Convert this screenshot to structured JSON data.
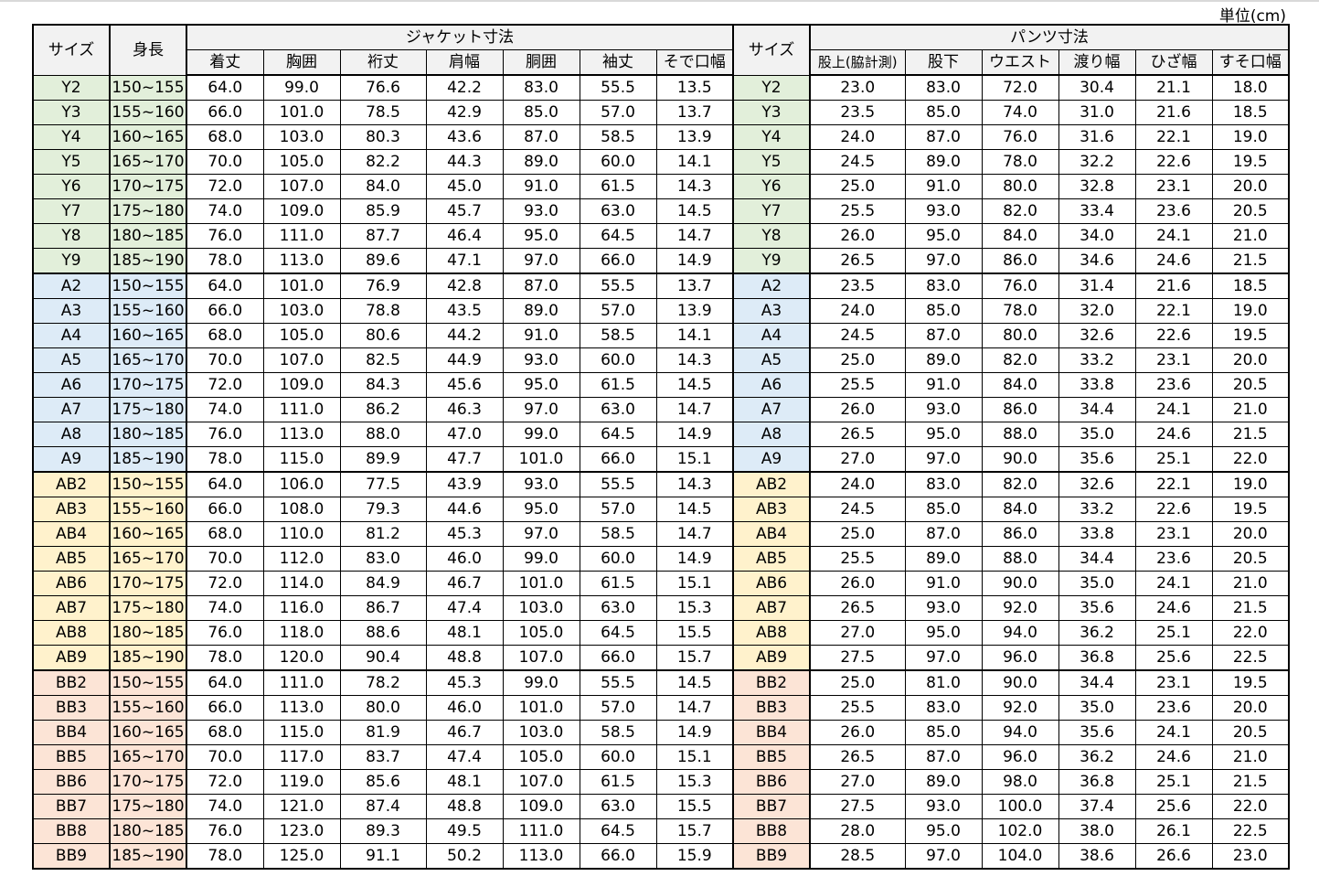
{
  "unit_label": "単位(cm)",
  "header": {
    "size": "サイズ",
    "height": "身長",
    "jacket_group": "ジャケット寸法",
    "pants_group": "パンツ寸法",
    "jacket_cols": [
      "着丈",
      "胸囲",
      "裄丈",
      "肩幅",
      "胴囲",
      "袖丈",
      "そで口幅"
    ],
    "pants_size": "サイズ",
    "pants_cols": [
      "股上(脇計測)",
      "股下",
      "ウエスト",
      "渡り幅",
      "ひざ幅",
      "すそ口幅"
    ]
  },
  "group_colors": [
    "#e2efda",
    "#ddebf7",
    "#fff2cc",
    "#fce4d6"
  ],
  "rows": [
    [
      "Y2",
      "150~155",
      "64.0",
      "99.0",
      "76.6",
      "42.2",
      "83.0",
      "55.5",
      "13.5",
      "23.0",
      "83.0",
      "72.0",
      "30.4",
      "21.1",
      "18.0"
    ],
    [
      "Y3",
      "155~160",
      "66.0",
      "101.0",
      "78.5",
      "42.9",
      "85.0",
      "57.0",
      "13.7",
      "23.5",
      "85.0",
      "74.0",
      "31.0",
      "21.6",
      "18.5"
    ],
    [
      "Y4",
      "160~165",
      "68.0",
      "103.0",
      "80.3",
      "43.6",
      "87.0",
      "58.5",
      "13.9",
      "24.0",
      "87.0",
      "76.0",
      "31.6",
      "22.1",
      "19.0"
    ],
    [
      "Y5",
      "165~170",
      "70.0",
      "105.0",
      "82.2",
      "44.3",
      "89.0",
      "60.0",
      "14.1",
      "24.5",
      "89.0",
      "78.0",
      "32.2",
      "22.6",
      "19.5"
    ],
    [
      "Y6",
      "170~175",
      "72.0",
      "107.0",
      "84.0",
      "45.0",
      "91.0",
      "61.5",
      "14.3",
      "25.0",
      "91.0",
      "80.0",
      "32.8",
      "23.1",
      "20.0"
    ],
    [
      "Y7",
      "175~180",
      "74.0",
      "109.0",
      "85.9",
      "45.7",
      "93.0",
      "63.0",
      "14.5",
      "25.5",
      "93.0",
      "82.0",
      "33.4",
      "23.6",
      "20.5"
    ],
    [
      "Y8",
      "180~185",
      "76.0",
      "111.0",
      "87.7",
      "46.4",
      "95.0",
      "64.5",
      "14.7",
      "26.0",
      "95.0",
      "84.0",
      "34.0",
      "24.1",
      "21.0"
    ],
    [
      "Y9",
      "185~190",
      "78.0",
      "113.0",
      "89.6",
      "47.1",
      "97.0",
      "66.0",
      "14.9",
      "26.5",
      "97.0",
      "86.0",
      "34.6",
      "24.6",
      "21.5"
    ],
    [
      "A2",
      "150~155",
      "64.0",
      "101.0",
      "76.9",
      "42.8",
      "87.0",
      "55.5",
      "13.7",
      "23.5",
      "83.0",
      "76.0",
      "31.4",
      "21.6",
      "18.5"
    ],
    [
      "A3",
      "155~160",
      "66.0",
      "103.0",
      "78.8",
      "43.5",
      "89.0",
      "57.0",
      "13.9",
      "24.0",
      "85.0",
      "78.0",
      "32.0",
      "22.1",
      "19.0"
    ],
    [
      "A4",
      "160~165",
      "68.0",
      "105.0",
      "80.6",
      "44.2",
      "91.0",
      "58.5",
      "14.1",
      "24.5",
      "87.0",
      "80.0",
      "32.6",
      "22.6",
      "19.5"
    ],
    [
      "A5",
      "165~170",
      "70.0",
      "107.0",
      "82.5",
      "44.9",
      "93.0",
      "60.0",
      "14.3",
      "25.0",
      "89.0",
      "82.0",
      "33.2",
      "23.1",
      "20.0"
    ],
    [
      "A6",
      "170~175",
      "72.0",
      "109.0",
      "84.3",
      "45.6",
      "95.0",
      "61.5",
      "14.5",
      "25.5",
      "91.0",
      "84.0",
      "33.8",
      "23.6",
      "20.5"
    ],
    [
      "A7",
      "175~180",
      "74.0",
      "111.0",
      "86.2",
      "46.3",
      "97.0",
      "63.0",
      "14.7",
      "26.0",
      "93.0",
      "86.0",
      "34.4",
      "24.1",
      "21.0"
    ],
    [
      "A8",
      "180~185",
      "76.0",
      "113.0",
      "88.0",
      "47.0",
      "99.0",
      "64.5",
      "14.9",
      "26.5",
      "95.0",
      "88.0",
      "35.0",
      "24.6",
      "21.5"
    ],
    [
      "A9",
      "185~190",
      "78.0",
      "115.0",
      "89.9",
      "47.7",
      "101.0",
      "66.0",
      "15.1",
      "27.0",
      "97.0",
      "90.0",
      "35.6",
      "25.1",
      "22.0"
    ],
    [
      "AB2",
      "150~155",
      "64.0",
      "106.0",
      "77.5",
      "43.9",
      "93.0",
      "55.5",
      "14.3",
      "24.0",
      "83.0",
      "82.0",
      "32.6",
      "22.1",
      "19.0"
    ],
    [
      "AB3",
      "155~160",
      "66.0",
      "108.0",
      "79.3",
      "44.6",
      "95.0",
      "57.0",
      "14.5",
      "24.5",
      "85.0",
      "84.0",
      "33.2",
      "22.6",
      "19.5"
    ],
    [
      "AB4",
      "160~165",
      "68.0",
      "110.0",
      "81.2",
      "45.3",
      "97.0",
      "58.5",
      "14.7",
      "25.0",
      "87.0",
      "86.0",
      "33.8",
      "23.1",
      "20.0"
    ],
    [
      "AB5",
      "165~170",
      "70.0",
      "112.0",
      "83.0",
      "46.0",
      "99.0",
      "60.0",
      "14.9",
      "25.5",
      "89.0",
      "88.0",
      "34.4",
      "23.6",
      "20.5"
    ],
    [
      "AB6",
      "170~175",
      "72.0",
      "114.0",
      "84.9",
      "46.7",
      "101.0",
      "61.5",
      "15.1",
      "26.0",
      "91.0",
      "90.0",
      "35.0",
      "24.1",
      "21.0"
    ],
    [
      "AB7",
      "175~180",
      "74.0",
      "116.0",
      "86.7",
      "47.4",
      "103.0",
      "63.0",
      "15.3",
      "26.5",
      "93.0",
      "92.0",
      "35.6",
      "24.6",
      "21.5"
    ],
    [
      "AB8",
      "180~185",
      "76.0",
      "118.0",
      "88.6",
      "48.1",
      "105.0",
      "64.5",
      "15.5",
      "27.0",
      "95.0",
      "94.0",
      "36.2",
      "25.1",
      "22.0"
    ],
    [
      "AB9",
      "185~190",
      "78.0",
      "120.0",
      "90.4",
      "48.8",
      "107.0",
      "66.0",
      "15.7",
      "27.5",
      "97.0",
      "96.0",
      "36.8",
      "25.6",
      "22.5"
    ],
    [
      "BB2",
      "150~155",
      "64.0",
      "111.0",
      "78.2",
      "45.3",
      "99.0",
      "55.5",
      "14.5",
      "25.0",
      "81.0",
      "90.0",
      "34.4",
      "23.1",
      "19.5"
    ],
    [
      "BB3",
      "155~160",
      "66.0",
      "113.0",
      "80.0",
      "46.0",
      "101.0",
      "57.0",
      "14.7",
      "25.5",
      "83.0",
      "92.0",
      "35.0",
      "23.6",
      "20.0"
    ],
    [
      "BB4",
      "160~165",
      "68.0",
      "115.0",
      "81.9",
      "46.7",
      "103.0",
      "58.5",
      "14.9",
      "26.0",
      "85.0",
      "94.0",
      "35.6",
      "24.1",
      "20.5"
    ],
    [
      "BB5",
      "165~170",
      "70.0",
      "117.0",
      "83.7",
      "47.4",
      "105.0",
      "60.0",
      "15.1",
      "26.5",
      "87.0",
      "96.0",
      "36.2",
      "24.6",
      "21.0"
    ],
    [
      "BB6",
      "170~175",
      "72.0",
      "119.0",
      "85.6",
      "48.1",
      "107.0",
      "61.5",
      "15.3",
      "27.0",
      "89.0",
      "98.0",
      "36.8",
      "25.1",
      "21.5"
    ],
    [
      "BB7",
      "175~180",
      "74.0",
      "121.0",
      "87.4",
      "48.8",
      "109.0",
      "63.0",
      "15.5",
      "27.5",
      "93.0",
      "100.0",
      "37.4",
      "25.6",
      "22.0"
    ],
    [
      "BB8",
      "180~185",
      "76.0",
      "123.0",
      "89.3",
      "49.5",
      "111.0",
      "64.5",
      "15.7",
      "28.0",
      "95.0",
      "102.0",
      "38.0",
      "26.1",
      "22.5"
    ],
    [
      "BB9",
      "185~190",
      "78.0",
      "125.0",
      "91.1",
      "50.2",
      "113.0",
      "66.0",
      "15.9",
      "28.5",
      "97.0",
      "104.0",
      "38.6",
      "26.6",
      "23.0"
    ]
  ]
}
